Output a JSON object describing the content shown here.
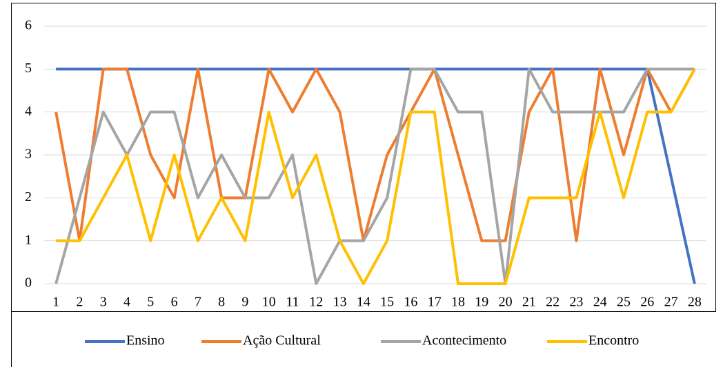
{
  "chart_data": {
    "type": "line",
    "categories": [
      1,
      2,
      3,
      4,
      5,
      6,
      7,
      8,
      9,
      10,
      11,
      12,
      13,
      14,
      15,
      16,
      17,
      18,
      19,
      20,
      21,
      22,
      23,
      24,
      25,
      26,
      27,
      28
    ],
    "series": [
      {
        "name": "Ensino",
        "color": "#4472c4",
        "values": [
          5,
          5,
          5,
          5,
          5,
          5,
          5,
          5,
          5,
          5,
          5,
          5,
          5,
          5,
          5,
          5,
          5,
          5,
          5,
          5,
          5,
          5,
          5,
          5,
          5,
          5,
          2.5,
          0
        ]
      },
      {
        "name": "Ação Cultural",
        "color": "#ed7d31",
        "values": [
          4,
          1,
          5,
          5,
          3,
          2,
          5,
          2,
          2,
          5,
          4,
          5,
          4,
          1,
          3,
          4,
          5,
          3,
          1,
          1,
          4,
          5,
          1,
          5,
          3,
          5,
          4,
          5
        ]
      },
      {
        "name": "Acontecimento",
        "color": "#a5a5a5",
        "values": [
          0,
          2,
          4,
          3,
          4,
          4,
          2,
          3,
          2,
          2,
          3,
          0,
          1,
          1,
          2,
          5,
          5,
          4,
          4,
          0,
          5,
          4,
          4,
          4,
          4,
          5,
          5,
          5
        ]
      },
      {
        "name": "Encontro",
        "color": "#ffc000",
        "values": [
          1,
          1,
          2,
          3,
          1,
          3,
          1,
          2,
          1,
          4,
          2,
          3,
          1,
          0,
          1,
          4,
          4,
          0,
          0,
          0,
          2,
          2,
          2,
          4,
          2,
          4,
          4,
          5
        ]
      }
    ],
    "ylim": [
      0,
      6
    ],
    "yticks": [
      0,
      1,
      2,
      3,
      4,
      5,
      6
    ],
    "grid": true,
    "legend": "bottom"
  }
}
